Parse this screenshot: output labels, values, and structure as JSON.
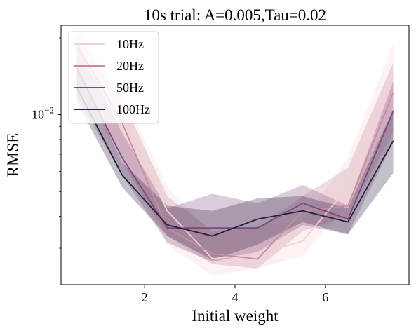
{
  "chart_data": {
    "type": "line",
    "title": "10s trial:     A=0.005,Tau=0.02",
    "xlabel": "Initial weight",
    "ylabel": "RMSE",
    "x": [
      0.5,
      1.5,
      2.5,
      3.5,
      4.5,
      5.5,
      6.5,
      7.5
    ],
    "xticks": [
      2,
      4,
      6
    ],
    "xlim": [
      0.15,
      7.85
    ],
    "ylim": [
      0.00216,
      0.0224
    ],
    "yscale": "log",
    "yticks": [
      {
        "value": 0.01,
        "base": "10",
        "exp": "−2"
      }
    ],
    "y_minor_ticks": [
      0.003,
      0.004,
      0.005,
      0.006,
      0.007,
      0.008,
      0.009,
      0.02
    ],
    "grid": false,
    "legend": {
      "location": "upper left"
    },
    "series": [
      {
        "name": "10Hz",
        "color": "#f2d1cc",
        "values": [
          0.0175,
          0.0098,
          0.0042,
          0.00273,
          0.00285,
          0.0032,
          0.0052,
          0.0142
        ],
        "ci_low": [
          0.0132,
          0.0069,
          0.0031,
          0.00235,
          0.0025,
          0.0028,
          0.0045,
          0.0095
        ],
        "ci_high": [
          0.0215,
          0.0122,
          0.0052,
          0.0034,
          0.0037,
          0.0038,
          0.0068,
          0.0188
        ]
      },
      {
        "name": "20Hz",
        "color": "#c98a9e",
        "values": [
          0.0188,
          0.0093,
          0.0036,
          0.00285,
          0.00272,
          0.0042,
          0.0044,
          0.0122
        ],
        "ci_low": [
          0.0148,
          0.0065,
          0.00335,
          0.0026,
          0.0025,
          0.0035,
          0.004,
          0.0085
        ],
        "ci_high": [
          0.0205,
          0.0115,
          0.0048,
          0.0035,
          0.0036,
          0.0048,
          0.0062,
          0.016
        ]
      },
      {
        "name": "50Hz",
        "color": "#7c4a7e",
        "values": [
          0.0152,
          0.0068,
          0.0036,
          0.0036,
          0.0036,
          0.0045,
          0.0039,
          0.0103
        ],
        "ci_low": [
          0.0118,
          0.0058,
          0.00315,
          0.00265,
          0.0029,
          0.0037,
          0.0034,
          0.0078
        ],
        "ci_high": [
          0.019,
          0.0085,
          0.0043,
          0.0049,
          0.0045,
          0.0053,
          0.0044,
          0.0135
        ]
      },
      {
        "name": "100Hz",
        "color": "#2c1e3e",
        "values": [
          0.0128,
          0.0058,
          0.0037,
          0.00335,
          0.0039,
          0.0042,
          0.0038,
          0.0079
        ],
        "ci_low": [
          0.0112,
          0.0052,
          0.00335,
          0.0027,
          0.0031,
          0.0038,
          0.0034,
          0.0059
        ],
        "ci_high": [
          0.0158,
          0.0065,
          0.0044,
          0.0042,
          0.0047,
          0.0048,
          0.0043,
          0.0105
        ]
      }
    ]
  }
}
